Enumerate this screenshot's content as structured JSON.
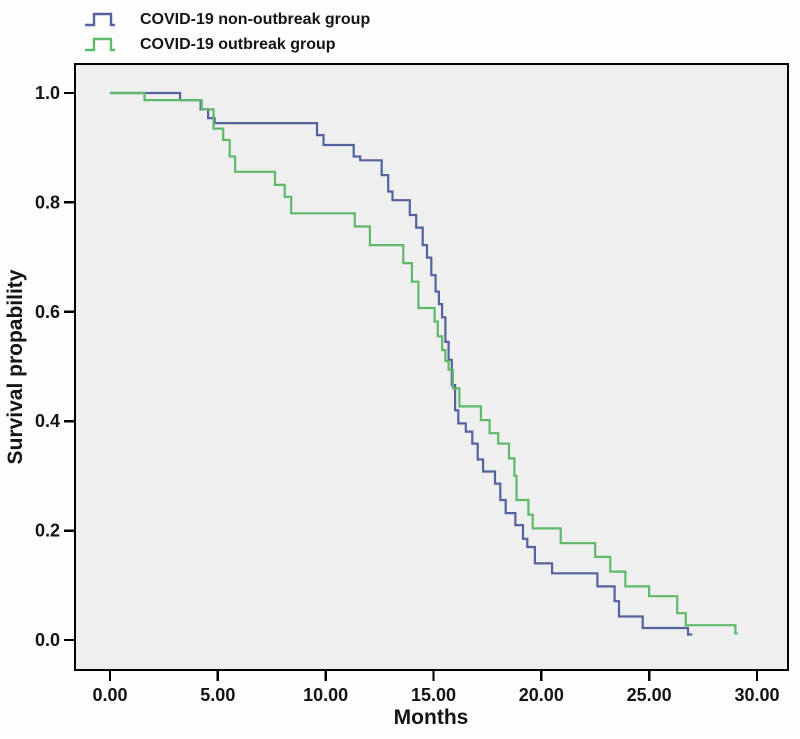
{
  "figure": {
    "background": "#fdfdfd",
    "plot_background": "#efefef",
    "frame_color": "#000000",
    "text_color": "#141414"
  },
  "chart_data": {
    "type": "line",
    "subtype": "kaplan-meier-step-survival",
    "title": "",
    "xlabel": "Months",
    "ylabel": "Survival propability",
    "xlim": [
      0,
      30
    ],
    "ylim": [
      0.0,
      1.0
    ],
    "grid": "off",
    "legend_position": "top-left",
    "x_tick_values": [
      0,
      5,
      10,
      15,
      20,
      25,
      30
    ],
    "x_tick_labels": [
      "0.00",
      "5.00",
      "10.00",
      "15.00",
      "20.00",
      "25.00",
      "30.00"
    ],
    "y_tick_values": [
      0.0,
      0.2,
      0.4,
      0.6,
      0.8,
      1.0
    ],
    "y_tick_labels": [
      "0.0",
      "0.2",
      "0.4",
      "0.6",
      "0.8",
      "1.0"
    ],
    "series": [
      {
        "name": "COVID-19 non-outbreak group",
        "color": "#54629e",
        "start": [
          0,
          1.0
        ],
        "drops": [
          [
            3.25,
            0.987
          ],
          [
            4.2,
            0.97
          ],
          [
            4.55,
            0.954
          ],
          [
            4.85,
            0.945
          ],
          [
            9.6,
            0.923
          ],
          [
            9.9,
            0.905
          ],
          [
            11.3,
            0.884
          ],
          [
            11.6,
            0.877
          ],
          [
            12.6,
            0.85
          ],
          [
            12.9,
            0.82
          ],
          [
            13.1,
            0.804
          ],
          [
            13.9,
            0.777
          ],
          [
            14.2,
            0.754
          ],
          [
            14.5,
            0.722
          ],
          [
            14.7,
            0.699
          ],
          [
            14.9,
            0.667
          ],
          [
            15.1,
            0.637
          ],
          [
            15.25,
            0.614
          ],
          [
            15.4,
            0.59
          ],
          [
            15.55,
            0.545
          ],
          [
            15.7,
            0.512
          ],
          [
            15.85,
            0.466
          ],
          [
            16.0,
            0.42
          ],
          [
            16.15,
            0.396
          ],
          [
            16.5,
            0.381
          ],
          [
            16.8,
            0.359
          ],
          [
            17.05,
            0.33
          ],
          [
            17.3,
            0.308
          ],
          [
            17.85,
            0.286
          ],
          [
            18.1,
            0.256
          ],
          [
            18.35,
            0.232
          ],
          [
            18.8,
            0.21
          ],
          [
            19.15,
            0.185
          ],
          [
            19.35,
            0.17
          ],
          [
            19.7,
            0.14
          ],
          [
            20.5,
            0.122
          ],
          [
            22.6,
            0.098
          ],
          [
            23.4,
            0.071
          ],
          [
            23.6,
            0.043
          ],
          [
            24.7,
            0.022
          ],
          [
            26.8,
            0.01
          ]
        ],
        "end_time": 27.0
      },
      {
        "name": "COVID-19 outbreak group",
        "color": "#5fb96a",
        "start": [
          0,
          1.0
        ],
        "drops": [
          [
            1.6,
            0.987
          ],
          [
            4.25,
            0.97
          ],
          [
            4.8,
            0.935
          ],
          [
            5.25,
            0.914
          ],
          [
            5.55,
            0.884
          ],
          [
            5.8,
            0.856
          ],
          [
            7.65,
            0.832
          ],
          [
            8.1,
            0.81
          ],
          [
            8.4,
            0.78
          ],
          [
            11.35,
            0.756
          ],
          [
            12.05,
            0.722
          ],
          [
            13.6,
            0.689
          ],
          [
            14.0,
            0.655
          ],
          [
            14.3,
            0.607
          ],
          [
            15.05,
            0.582
          ],
          [
            15.2,
            0.555
          ],
          [
            15.4,
            0.53
          ],
          [
            15.55,
            0.51
          ],
          [
            15.7,
            0.494
          ],
          [
            15.9,
            0.46
          ],
          [
            16.2,
            0.427
          ],
          [
            17.2,
            0.402
          ],
          [
            17.6,
            0.378
          ],
          [
            18.0,
            0.359
          ],
          [
            18.5,
            0.332
          ],
          [
            18.75,
            0.3
          ],
          [
            18.85,
            0.256
          ],
          [
            19.4,
            0.229
          ],
          [
            19.6,
            0.204
          ],
          [
            20.9,
            0.177
          ],
          [
            22.5,
            0.152
          ],
          [
            23.2,
            0.125
          ],
          [
            23.9,
            0.098
          ],
          [
            25.0,
            0.08
          ],
          [
            26.3,
            0.049
          ],
          [
            26.7,
            0.027
          ],
          [
            29.0,
            0.012
          ]
        ],
        "end_time": 29.1
      }
    ]
  }
}
